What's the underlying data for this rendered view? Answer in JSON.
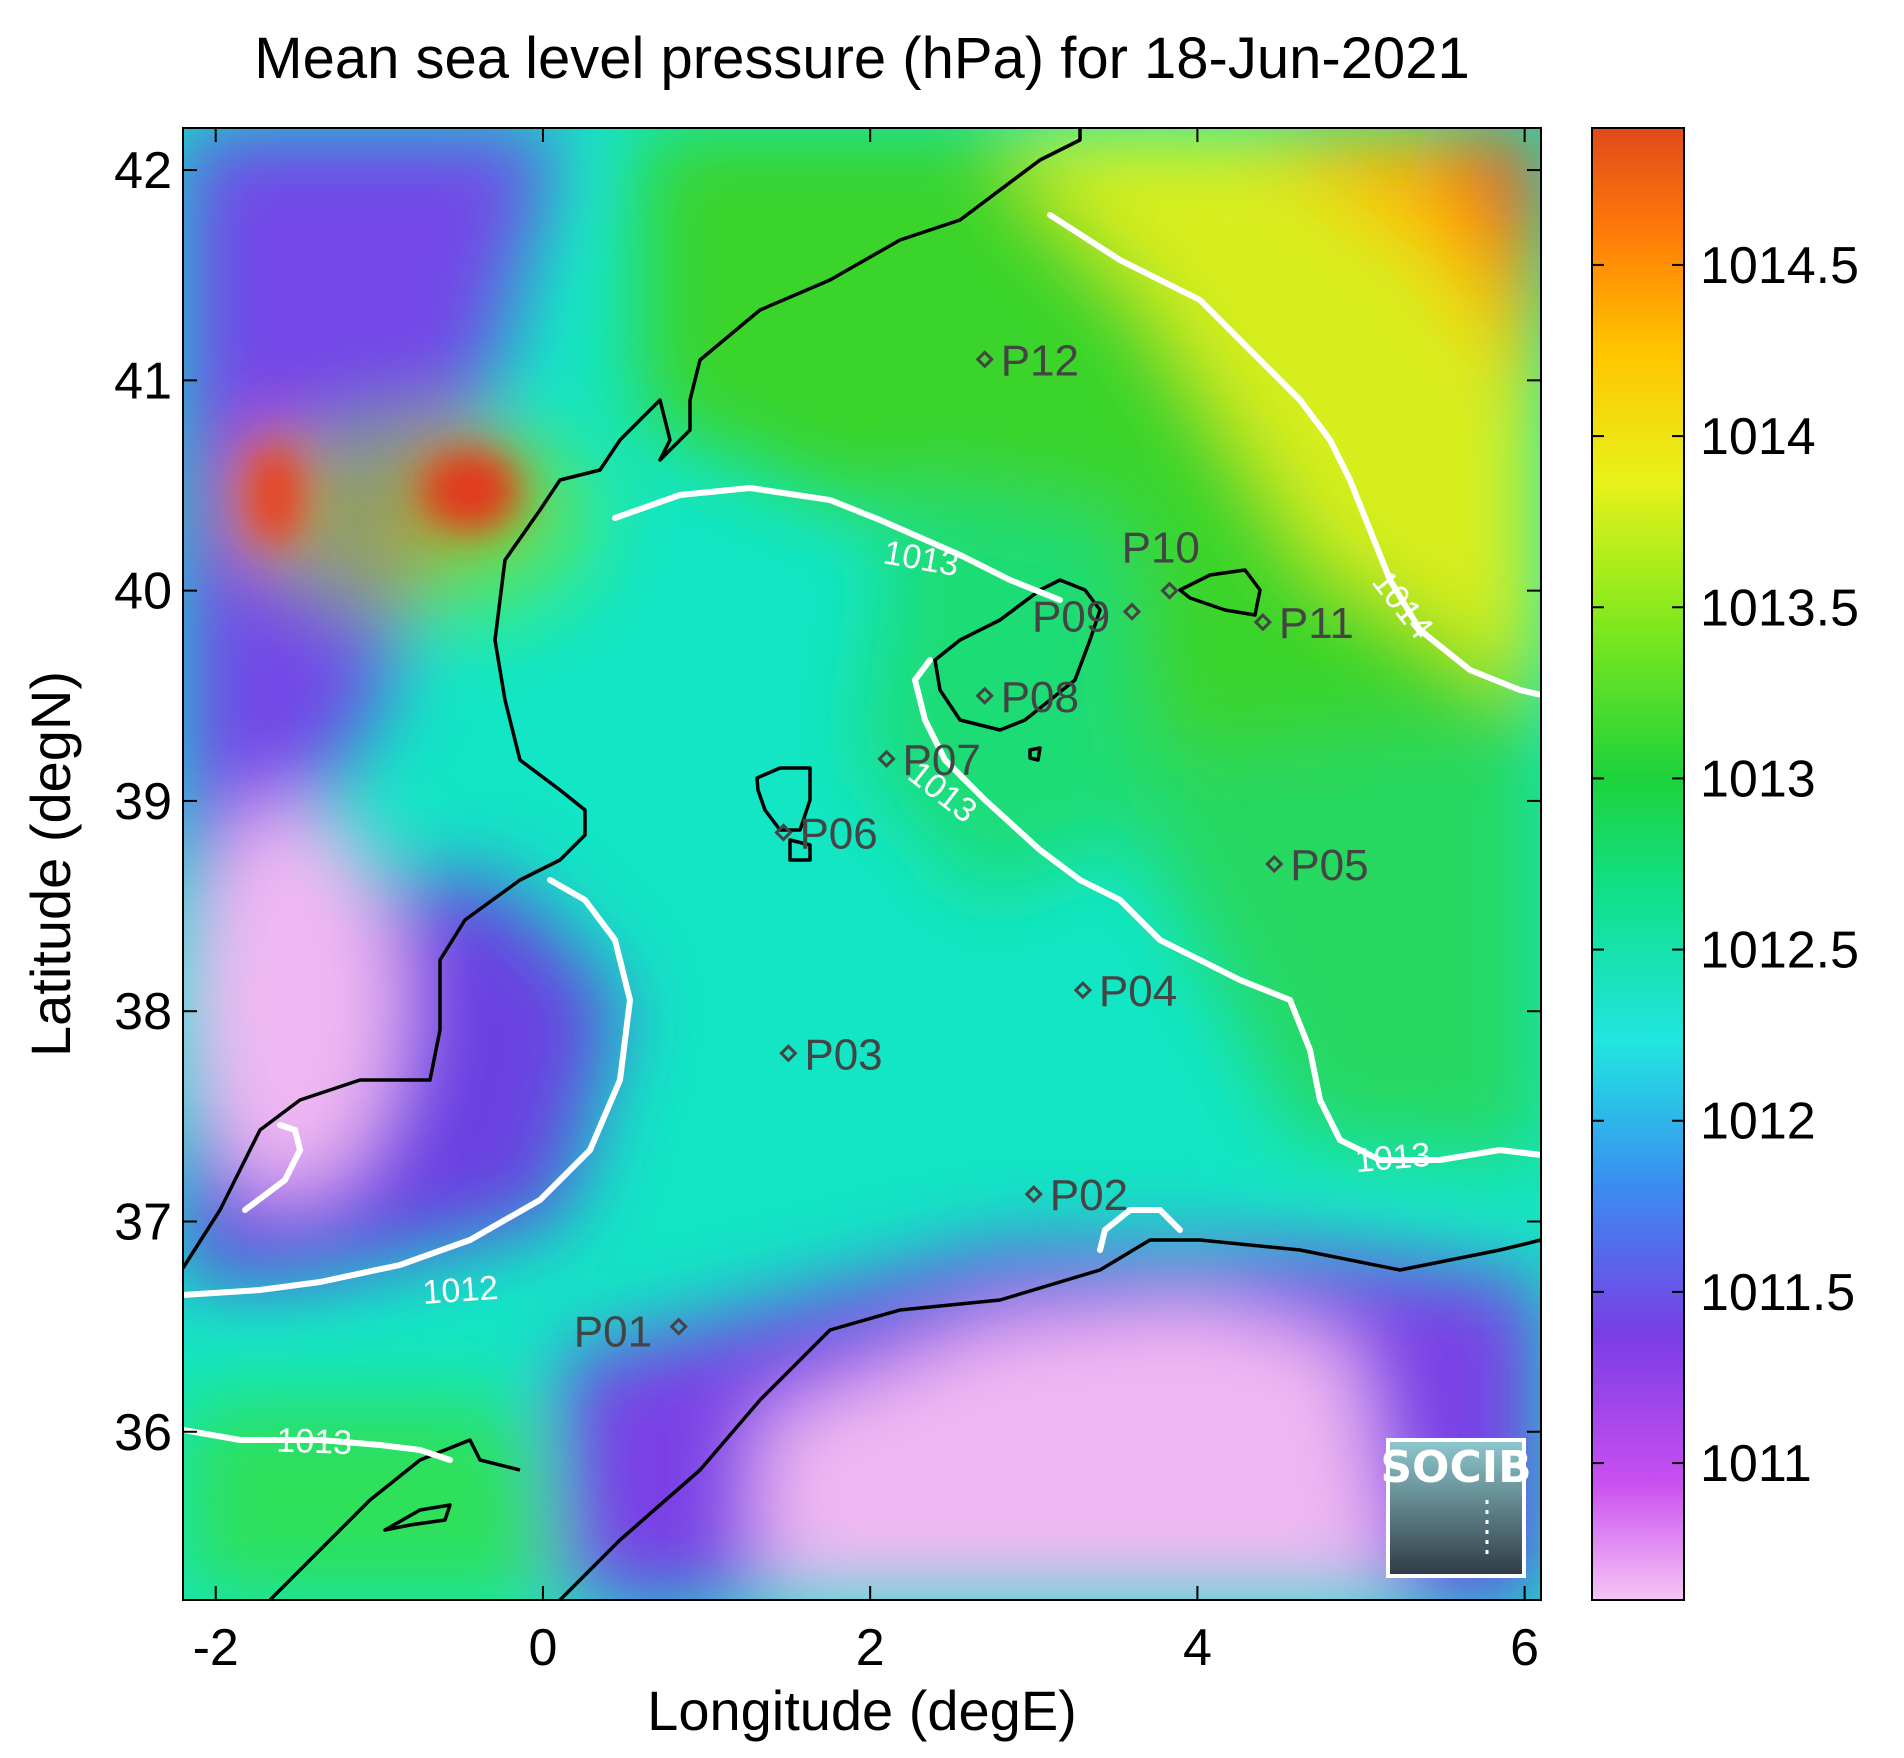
{
  "chart_data": {
    "type": "heatmap",
    "title": "Mean sea level pressure (hPa) for 18-Jun-2021",
    "xlabel": "Longitude (degE)",
    "ylabel": "Latitude (degN)",
    "xlim": [
      -2.2,
      6.1
    ],
    "ylim": [
      35.2,
      42.2
    ],
    "x_ticks": [
      -2,
      0,
      2,
      4,
      6
    ],
    "y_ticks": [
      36,
      37,
      38,
      39,
      40,
      41,
      42
    ],
    "colorbar": {
      "range": [
        1010.6,
        1014.9
      ],
      "ticks": [
        1011,
        1011.5,
        1012,
        1012.5,
        1013,
        1013.5,
        1014,
        1014.5
      ],
      "colormap": [
        "#f5c6f5",
        "#c94ff0",
        "#7a3de6",
        "#3b8cf0",
        "#20e6e0",
        "#10e08a",
        "#1ed23a",
        "#7ee81e",
        "#e8f21a",
        "#ffc400",
        "#ff7a08",
        "#e04a1c"
      ]
    },
    "stations": [
      {
        "name": "P01",
        "lon": 0.83,
        "lat": 36.5
      },
      {
        "name": "P02",
        "lon": 3.0,
        "lat": 37.13
      },
      {
        "name": "P03",
        "lon": 1.5,
        "lat": 37.8
      },
      {
        "name": "P04",
        "lon": 3.3,
        "lat": 38.1
      },
      {
        "name": "P05",
        "lon": 4.47,
        "lat": 38.7
      },
      {
        "name": "P06",
        "lon": 1.47,
        "lat": 38.85
      },
      {
        "name": "P07",
        "lon": 2.1,
        "lat": 39.2
      },
      {
        "name": "P08",
        "lon": 2.7,
        "lat": 39.5
      },
      {
        "name": "P09",
        "lon": 3.6,
        "lat": 39.9
      },
      {
        "name": "P10",
        "lon": 3.83,
        "lat": 40.0
      },
      {
        "name": "P11",
        "lon": 4.4,
        "lat": 39.85
      },
      {
        "name": "P12",
        "lon": 2.7,
        "lat": 41.1
      }
    ],
    "contours": [
      {
        "label": "1012",
        "level": 1012
      },
      {
        "label": "1013",
        "level": 1013
      },
      {
        "label": "1014",
        "level": 1014
      }
    ],
    "logo_text": "SOCIB"
  }
}
